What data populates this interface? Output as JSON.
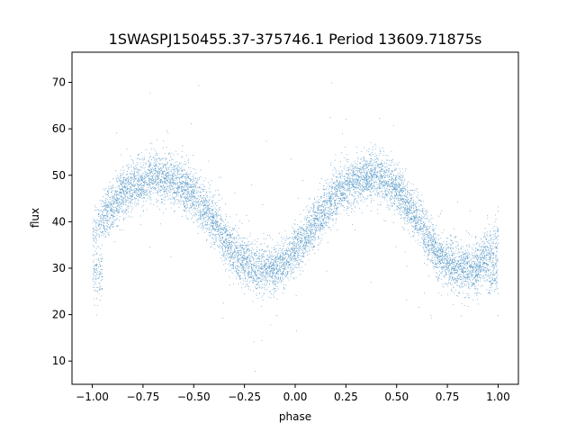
{
  "chart_data": {
    "type": "scatter",
    "title": "1SWASPJ150455.37-375746.1 Period 13609.71875s",
    "xlabel": "phase",
    "ylabel": "flux",
    "xlim": [
      -1.1,
      1.1
    ],
    "ylim": [
      5,
      76.5
    ],
    "xticks": [
      -1.0,
      -0.75,
      -0.5,
      -0.25,
      0.0,
      0.25,
      0.5,
      0.75,
      1.0
    ],
    "xtick_labels": [
      "−1.00",
      "−0.75",
      "−0.50",
      "−0.25",
      "0.00",
      "0.25",
      "0.50",
      "0.75",
      "1.00"
    ],
    "yticks": [
      10,
      20,
      30,
      40,
      50,
      60,
      70
    ],
    "ytick_labels": [
      "10",
      "20",
      "30",
      "40",
      "50",
      "60",
      "70"
    ],
    "grid": false,
    "marker_color": "#1f77b4",
    "series": [
      {
        "name": "",
        "phase_range": [
          -1.0,
          1.0
        ],
        "light_curve": {
          "phase": [
            -1.0,
            -0.9,
            -0.8,
            -0.7,
            -0.6,
            -0.5,
            -0.4,
            -0.3,
            -0.2,
            -0.1,
            0.0,
            0.1,
            0.2,
            0.3,
            0.4,
            0.5,
            0.6,
            0.7,
            0.8,
            0.9,
            1.0
          ],
          "flux": [
            37,
            44,
            48,
            50,
            49,
            46,
            40,
            33,
            30,
            30,
            34,
            40,
            46,
            49,
            50,
            47,
            41,
            33,
            30,
            30,
            37
          ]
        },
        "secondary_branch_flux_near_phase_pm1": 29
      }
    ]
  }
}
